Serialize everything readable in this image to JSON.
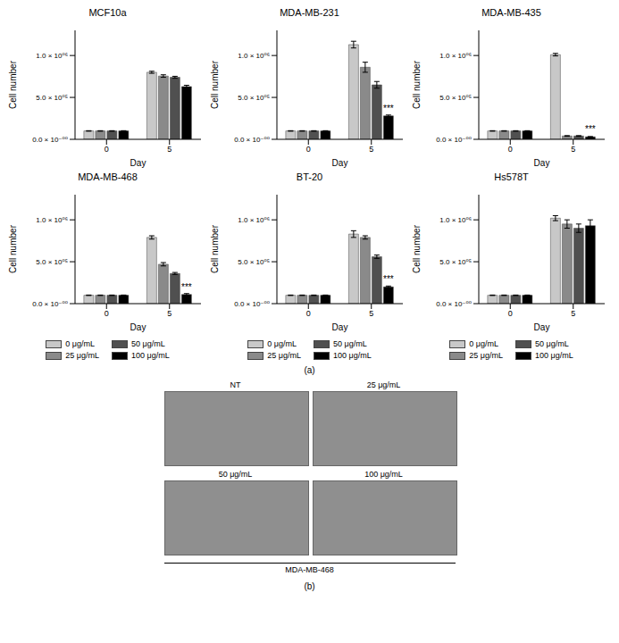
{
  "chart_data": [
    {
      "type": "bar",
      "title": "MCF10a",
      "x_label": "Day",
      "y_label": "Cell number",
      "categories": [
        "0",
        "5"
      ],
      "series": [
        {
          "name": "0 μg/mL",
          "color": "#c8c8c8",
          "values": [
            100000,
            800000
          ],
          "errors": [
            3000,
            12000
          ]
        },
        {
          "name": "25 μg/mL",
          "color": "#8a8a8a",
          "values": [
            100000,
            755000
          ],
          "errors": [
            3000,
            15000
          ]
        },
        {
          "name": "50 μg/mL",
          "color": "#505050",
          "values": [
            100000,
            740000
          ],
          "errors": [
            3000,
            12000
          ]
        },
        {
          "name": "100 μg/mL",
          "color": "#000000",
          "values": [
            100000,
            630000
          ],
          "errors": [
            3000,
            15000
          ]
        }
      ],
      "ylim": [
        0,
        1300000
      ],
      "yticks": [
        {
          "value": 0,
          "label": "0.0 × 10⁻⁰⁰"
        },
        {
          "value": 500000,
          "label": "5.0 × 10⁰⁵"
        },
        {
          "value": 1000000,
          "label": "1.0 × 10⁰⁶"
        }
      ],
      "annotations": []
    },
    {
      "type": "bar",
      "title": "MDA-MB-231",
      "x_label": "Day",
      "y_label": "Cell number",
      "categories": [
        "0",
        "5"
      ],
      "series": [
        {
          "name": "0 μg/mL",
          "color": "#c8c8c8",
          "values": [
            100000,
            1130000
          ],
          "errors": [
            3000,
            40000
          ]
        },
        {
          "name": "25 μg/mL",
          "color": "#8a8a8a",
          "values": [
            100000,
            860000
          ],
          "errors": [
            3000,
            60000
          ]
        },
        {
          "name": "50 μg/mL",
          "color": "#505050",
          "values": [
            100000,
            650000
          ],
          "errors": [
            3000,
            40000
          ]
        },
        {
          "name": "100 μg/mL",
          "color": "#000000",
          "values": [
            100000,
            280000
          ],
          "errors": [
            3000,
            10000
          ]
        }
      ],
      "ylim": [
        0,
        1300000
      ],
      "yticks": [
        {
          "value": 0,
          "label": "0.0 × 10⁻⁰⁰"
        },
        {
          "value": 500000,
          "label": "5.0 × 10⁰⁵"
        },
        {
          "value": 1000000,
          "label": "1.0 × 10⁰⁶"
        }
      ],
      "annotations": [
        {
          "category": "5",
          "series": "100 μg/mL",
          "text": "***"
        }
      ]
    },
    {
      "type": "bar",
      "title": "MDA-MB-435",
      "x_label": "Day",
      "y_label": "Cell number",
      "categories": [
        "0",
        "5"
      ],
      "series": [
        {
          "name": "0 μg/mL",
          "color": "#c8c8c8",
          "values": [
            100000,
            1010000
          ],
          "errors": [
            3000,
            15000
          ]
        },
        {
          "name": "25 μg/mL",
          "color": "#8a8a8a",
          "values": [
            100000,
            40000
          ],
          "errors": [
            3000,
            4000
          ]
        },
        {
          "name": "50 μg/mL",
          "color": "#505050",
          "values": [
            100000,
            40000
          ],
          "errors": [
            3000,
            4000
          ]
        },
        {
          "name": "100 μg/mL",
          "color": "#000000",
          "values": [
            100000,
            30000
          ],
          "errors": [
            3000,
            3000
          ]
        }
      ],
      "ylim": [
        0,
        1300000
      ],
      "yticks": [
        {
          "value": 0,
          "label": "0.0 × 10⁻⁰⁰"
        },
        {
          "value": 500000,
          "label": "5.0 × 10⁰⁵"
        },
        {
          "value": 1000000,
          "label": "1.0 × 10⁰⁶"
        }
      ],
      "annotations": [
        {
          "category": "5",
          "series": "100 μg/mL",
          "text": "***"
        }
      ]
    },
    {
      "type": "bar",
      "title": "MDA-MB-468",
      "x_label": "Day",
      "y_label": "Cell number",
      "categories": [
        "0",
        "5"
      ],
      "series": [
        {
          "name": "0 μg/mL",
          "color": "#c8c8c8",
          "values": [
            100000,
            790000
          ],
          "errors": [
            3000,
            20000
          ]
        },
        {
          "name": "25 μg/mL",
          "color": "#8a8a8a",
          "values": [
            100000,
            470000
          ],
          "errors": [
            3000,
            20000
          ]
        },
        {
          "name": "50 μg/mL",
          "color": "#505050",
          "values": [
            100000,
            360000
          ],
          "errors": [
            3000,
            12000
          ]
        },
        {
          "name": "100 μg/mL",
          "color": "#000000",
          "values": [
            100000,
            110000
          ],
          "errors": [
            3000,
            10000
          ]
        }
      ],
      "ylim": [
        0,
        1300000
      ],
      "yticks": [
        {
          "value": 0,
          "label": "0.0 × 10⁻⁰⁰"
        },
        {
          "value": 500000,
          "label": "5.0 × 10⁰⁵"
        },
        {
          "value": 1000000,
          "label": "1.0 × 10⁰⁶"
        }
      ],
      "annotations": [
        {
          "category": "5",
          "series": "100 μg/mL",
          "text": "***"
        }
      ],
      "legend": "bottom"
    },
    {
      "type": "bar",
      "title": "BT-20",
      "x_label": "Day",
      "y_label": "Cell number",
      "categories": [
        "0",
        "5"
      ],
      "series": [
        {
          "name": "0 μg/mL",
          "color": "#c8c8c8",
          "values": [
            100000,
            830000
          ],
          "errors": [
            3000,
            40000
          ]
        },
        {
          "name": "25 μg/mL",
          "color": "#8a8a8a",
          "values": [
            100000,
            790000
          ],
          "errors": [
            3000,
            20000
          ]
        },
        {
          "name": "50 μg/mL",
          "color": "#505050",
          "values": [
            100000,
            560000
          ],
          "errors": [
            3000,
            20000
          ]
        },
        {
          "name": "100 μg/mL",
          "color": "#000000",
          "values": [
            100000,
            200000
          ],
          "errors": [
            3000,
            10000
          ]
        }
      ],
      "ylim": [
        0,
        1300000
      ],
      "yticks": [
        {
          "value": 0,
          "label": "0.0 × 10⁻⁰⁰"
        },
        {
          "value": 500000,
          "label": "5.0 × 10⁰⁵"
        },
        {
          "value": 1000000,
          "label": "1.0 × 10⁰⁶"
        }
      ],
      "annotations": [
        {
          "category": "5",
          "series": "100 μg/mL",
          "text": "***"
        }
      ],
      "legend": "bottom"
    },
    {
      "type": "bar",
      "title": "Hs578T",
      "x_label": "Day",
      "y_label": "Cell number",
      "categories": [
        "0",
        "5"
      ],
      "series": [
        {
          "name": "0 μg/mL",
          "color": "#c8c8c8",
          "values": [
            100000,
            1020000
          ],
          "errors": [
            3000,
            30000
          ]
        },
        {
          "name": "25 μg/mL",
          "color": "#8a8a8a",
          "values": [
            100000,
            950000
          ],
          "errors": [
            3000,
            50000
          ]
        },
        {
          "name": "50 μg/mL",
          "color": "#505050",
          "values": [
            100000,
            900000
          ],
          "errors": [
            3000,
            50000
          ]
        },
        {
          "name": "100 μg/mL",
          "color": "#000000",
          "values": [
            100000,
            930000
          ],
          "errors": [
            3000,
            70000
          ]
        }
      ],
      "ylim": [
        0,
        1300000
      ],
      "yticks": [
        {
          "value": 0,
          "label": "0.0 × 10⁻⁰⁰"
        },
        {
          "value": 500000,
          "label": "5.0 × 10⁰⁵"
        },
        {
          "value": 1000000,
          "label": "1.0 × 10⁰⁶"
        }
      ],
      "annotations": [],
      "legend": "bottom"
    }
  ],
  "panel_labels": [
    "(a)",
    "(b)"
  ],
  "images": {
    "labels": [
      "NT",
      "25 μg/mL",
      "50 μg/mL",
      "100 μg/mL"
    ],
    "caption": "MDA-MB-468"
  }
}
